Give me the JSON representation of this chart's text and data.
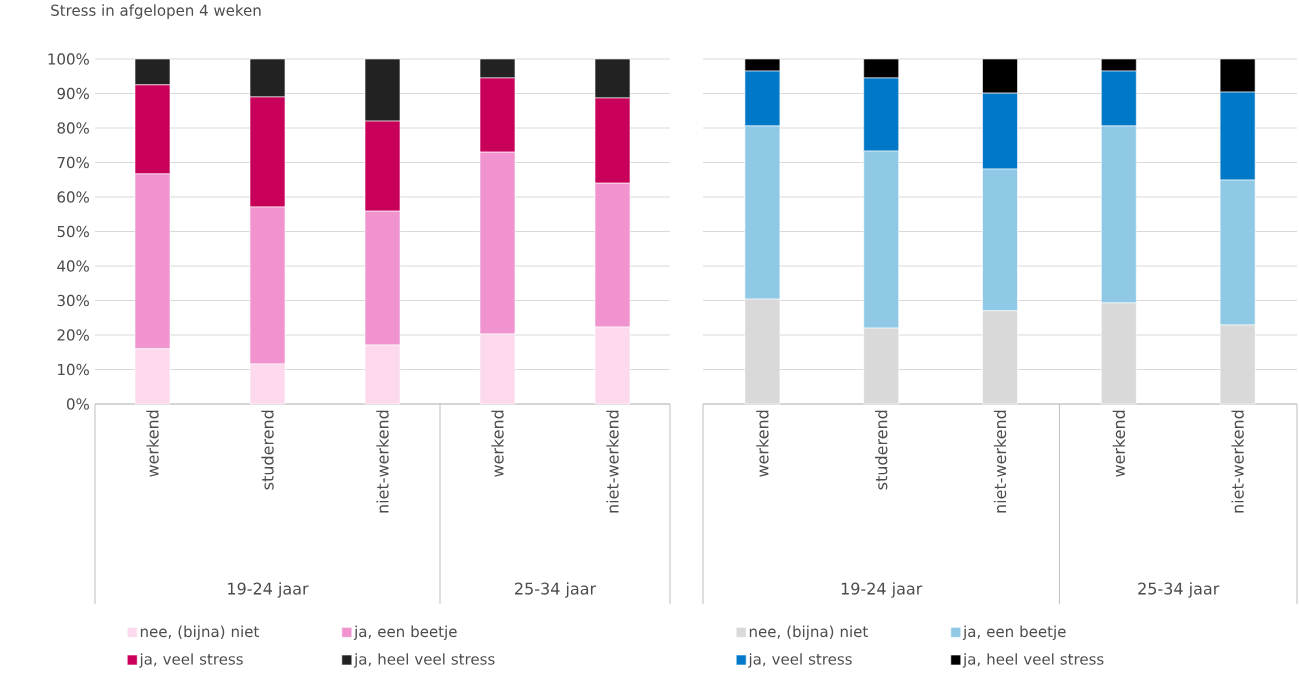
{
  "chart_data": [
    {
      "type": "bar",
      "stacked": true,
      "title": "Stress in afgelopen 4 weken",
      "categories": [
        "werkend",
        "studerend",
        "niet-werkend",
        "werkend",
        "niet-werkend"
      ],
      "annotations": [
        "19-24 jaar",
        "25-34 jaar"
      ],
      "series": [
        {
          "name": "nee, (bijna) niet",
          "color": "#fcd9ec",
          "values": [
            16,
            11.6,
            17.1,
            20.3,
            22.3
          ]
        },
        {
          "name": "ja, een beetje",
          "color": "#f093cf",
          "values": [
            50.7,
            45.5,
            38.8,
            52.7,
            41.7
          ]
        },
        {
          "name": "ja, veel stress",
          "color": "#c8005a",
          "values": [
            25.8,
            31.9,
            26.1,
            21.5,
            24.7
          ]
        },
        {
          "name": "ja, heel veel stress",
          "color": "#222222",
          "values": [
            7.5,
            11,
            18,
            5.5,
            11.3
          ]
        }
      ],
      "ylim": [
        0,
        100
      ],
      "yticks": [
        {
          "value": 0,
          "label": "0%"
        },
        {
          "value": 10,
          "label": "10%"
        },
        {
          "value": 20,
          "label": "20%"
        },
        {
          "value": 30,
          "label": "30%"
        },
        {
          "value": 40,
          "label": "40%"
        },
        {
          "value": 50,
          "label": "50%"
        },
        {
          "value": 60,
          "label": "60%"
        },
        {
          "value": 70,
          "label": "70%"
        },
        {
          "value": 80,
          "label": "80%"
        },
        {
          "value": 90,
          "label": "90%"
        },
        {
          "value": 100,
          "label": "100%"
        }
      ],
      "grid": "y",
      "legend": "bottom"
    },
    {
      "type": "bar",
      "stacked": true,
      "categories": [
        "werkend",
        "studerend",
        "niet-werkend",
        "werkend",
        "niet-werkend"
      ],
      "annotations": [
        "19-24 jaar",
        "25-34 jaar"
      ],
      "series": [
        {
          "name": "nee, (bijna) niet",
          "color": "#d9d9d9",
          "values": [
            30.4,
            22,
            27,
            29.3,
            22.9
          ]
        },
        {
          "name": "ja, een beetje",
          "color": "#8fc9e6",
          "values": [
            50.2,
            51.3,
            41.1,
            51.3,
            42
          ]
        },
        {
          "name": "ja, veel stress",
          "color": "#0078c8",
          "values": [
            15.9,
            21.2,
            22,
            15.9,
            25.5
          ]
        },
        {
          "name": "ja, heel veel stress",
          "color": "#000000",
          "values": [
            3.5,
            5.5,
            9.9,
            3.5,
            9.6
          ]
        }
      ],
      "ylim": [
        0,
        100
      ],
      "yticks": [
        0,
        10,
        20,
        30,
        40,
        50,
        60,
        70,
        80,
        90,
        100
      ],
      "tick_labels": "x",
      "grid": "y",
      "legend": "bottom"
    }
  ]
}
